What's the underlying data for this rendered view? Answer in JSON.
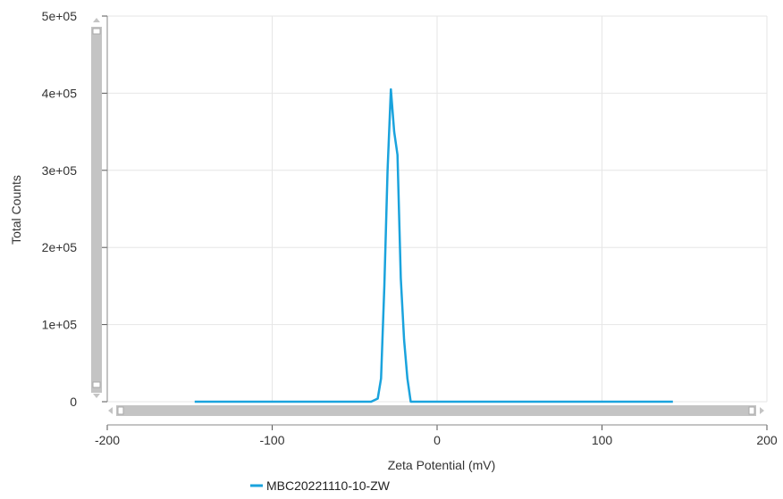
{
  "chart_data": {
    "type": "line",
    "title": "",
    "xlabel": "Zeta Potential (mV)",
    "ylabel": "Total Counts",
    "xlim": [
      -200,
      200
    ],
    "ylim": [
      0,
      500000
    ],
    "x_ticks": [
      -200,
      -100,
      0,
      100,
      200
    ],
    "y_ticks": [
      0,
      100000,
      200000,
      300000,
      400000,
      500000
    ],
    "x_tick_labels": [
      "-200",
      "-100",
      "0",
      "100",
      "200"
    ],
    "y_tick_labels": [
      "0",
      "1e+05",
      "2e+05",
      "3e+05",
      "4e+05",
      "5e+05"
    ],
    "grid": true,
    "legend_position": "bottom",
    "series": [
      {
        "name": "MBC20221110-10-ZW",
        "color": "#1aa3dd",
        "x": [
          -147,
          -40,
          -36,
          -34,
          -32,
          -30,
          -28,
          -26,
          -24,
          -22,
          -20,
          -18,
          -16,
          143
        ],
        "y": [
          0,
          0,
          4000,
          30000,
          150000,
          300000,
          405000,
          350000,
          320000,
          160000,
          80000,
          30000,
          0,
          0
        ]
      }
    ]
  },
  "scrollbars": {
    "vertical_color": "#c4c4c4",
    "horizontal_color": "#c4c4c4"
  }
}
